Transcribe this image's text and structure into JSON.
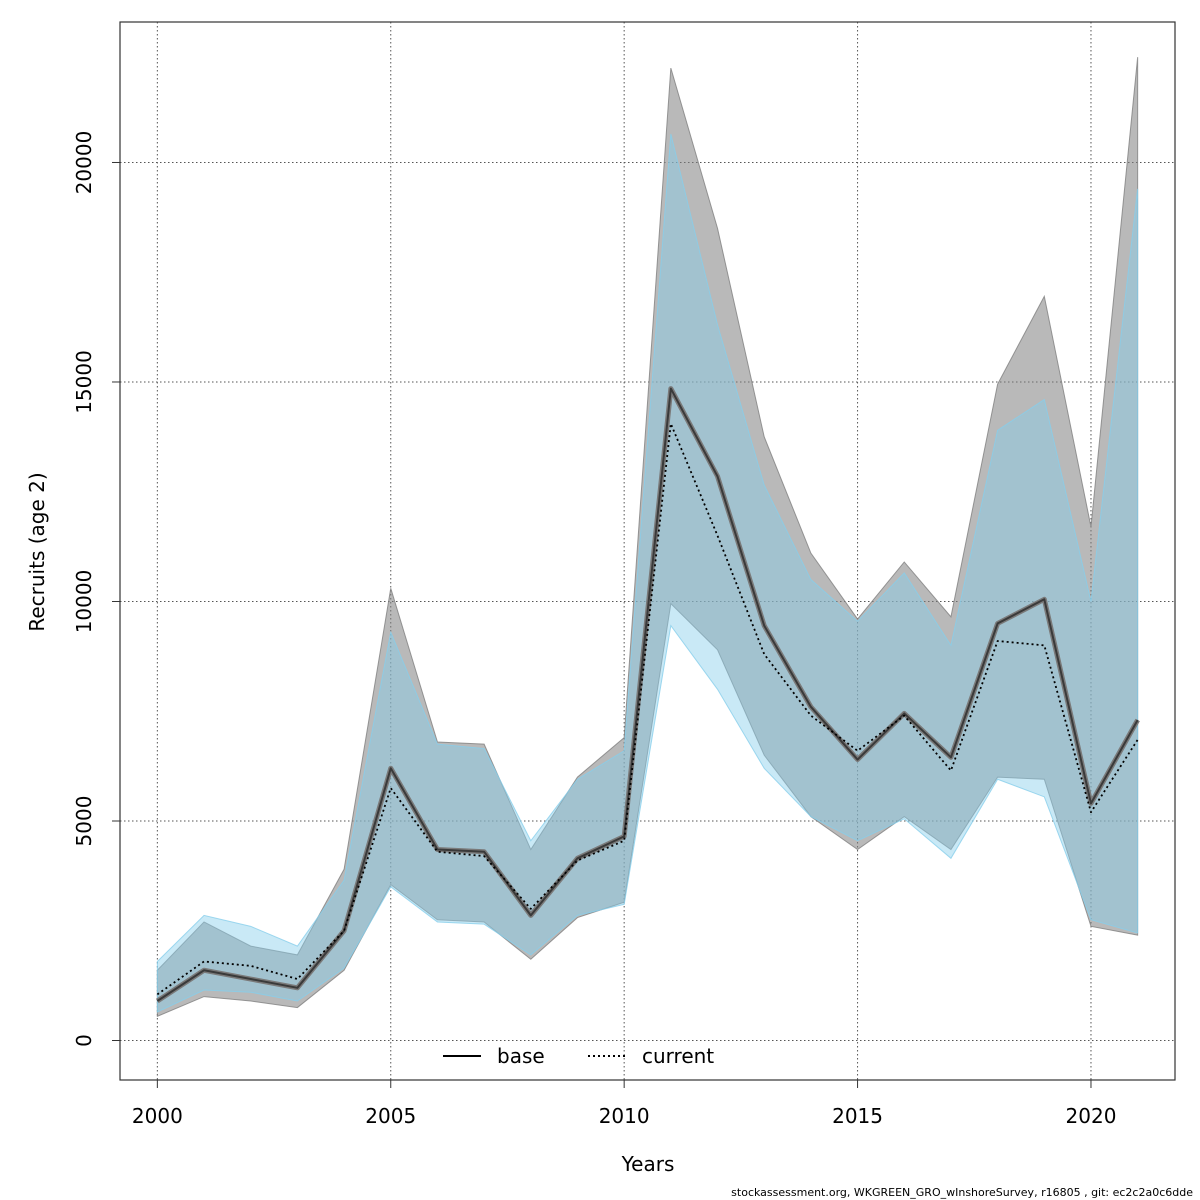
{
  "chart_data": {
    "type": "area",
    "xlabel": "Years",
    "ylabel": "Recruits (age 2)",
    "xlim": [
      1999.2,
      2021.8
    ],
    "ylim": [
      -900,
      23200
    ],
    "x_ticks": [
      2000,
      2005,
      2010,
      2015,
      2020
    ],
    "y_ticks": [
      0,
      5000,
      10000,
      15000,
      20000
    ],
    "grid": true,
    "legend_position": "bottom-center",
    "x": [
      2000,
      2001,
      2002,
      2003,
      2004,
      2005,
      2006,
      2007,
      2008,
      2009,
      2010,
      2011,
      2012,
      2013,
      2014,
      2015,
      2016,
      2017,
      2018,
      2019,
      2020,
      2021
    ],
    "series": [
      {
        "name": "base",
        "line_style": "solid",
        "line_color": "#000000",
        "band_color": "#808080",
        "values": [
          900,
          1600,
          1400,
          1200,
          2500,
          6200,
          4350,
          4300,
          2850,
          4150,
          4650,
          14850,
          12850,
          9450,
          7600,
          6400,
          7450,
          6450,
          9500,
          10050,
          5400,
          7300
        ],
        "lower": [
          550,
          1000,
          900,
          750,
          1600,
          3550,
          2750,
          2700,
          1850,
          2800,
          3150,
          9950,
          8900,
          6500,
          5100,
          4350,
          5100,
          4350,
          6000,
          5950,
          2600,
          2400
        ],
        "upper": [
          1600,
          2700,
          2150,
          1950,
          3900,
          10300,
          6800,
          6750,
          4350,
          6000,
          6900,
          22150,
          18500,
          13750,
          11100,
          9600,
          10900,
          9650,
          14950,
          16950,
          11700,
          22400
        ]
      },
      {
        "name": "current",
        "line_style": "dotted",
        "line_color": "#000000",
        "band_color": "#87CEEB",
        "values": [
          1050,
          1800,
          1700,
          1400,
          2500,
          5750,
          4300,
          4200,
          3000,
          4100,
          4550,
          14050,
          11500,
          8800,
          7400,
          6600,
          7400,
          6150,
          9100,
          9000,
          5200,
          6850
        ],
        "lower": [
          650,
          1150,
          1100,
          900,
          1650,
          3500,
          2700,
          2650,
          1950,
          2850,
          3100,
          9450,
          8000,
          6200,
          5100,
          4550,
          5050,
          4150,
          5950,
          5550,
          2750,
          2450
        ],
        "upper": [
          1800,
          2850,
          2600,
          2150,
          3650,
          9300,
          6750,
          6650,
          4550,
          5950,
          6600,
          20650,
          16300,
          12650,
          10500,
          9550,
          10650,
          9000,
          13900,
          14600,
          10000,
          19400
        ]
      }
    ]
  },
  "footer": "stockassessment.org, WKGREEN_GRO_wInshoreSurvey, r16805 , git: ec2c2a0c6dde"
}
